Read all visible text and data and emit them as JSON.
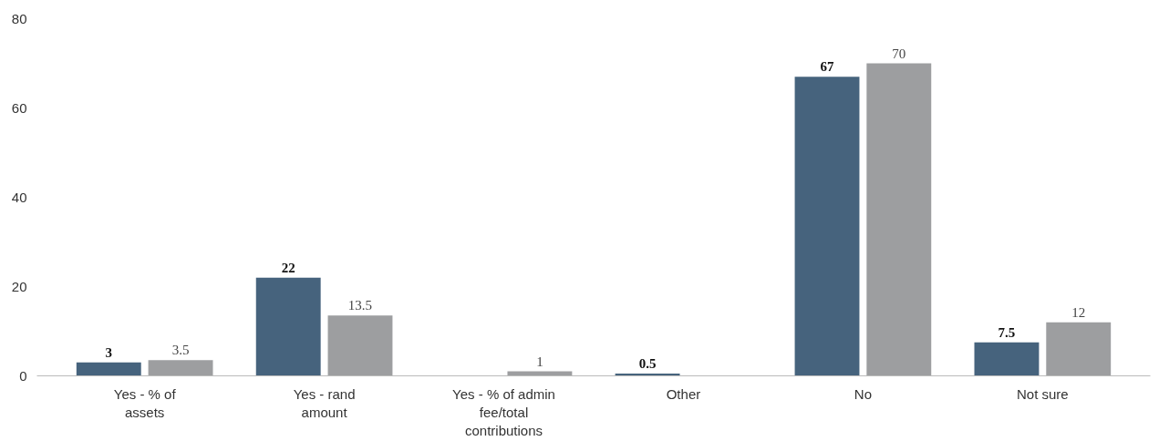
{
  "chart_data": {
    "type": "bar",
    "categories": [
      "Yes - % of assets",
      "Yes - rand amount",
      "Yes - % of admin fee/total contributions",
      "Other",
      "No",
      "Not sure"
    ],
    "series": [
      {
        "color": "#46637d",
        "values": [
          3,
          22,
          null,
          0.5,
          67,
          7.5
        ]
      },
      {
        "color": "#9d9ea0",
        "values": [
          3.5,
          13.5,
          1,
          null,
          70,
          12
        ]
      }
    ],
    "ylim": [
      0,
      80
    ],
    "yticks": [
      0,
      20,
      40,
      60,
      80
    ],
    "grid": false,
    "data_labels": true
  }
}
